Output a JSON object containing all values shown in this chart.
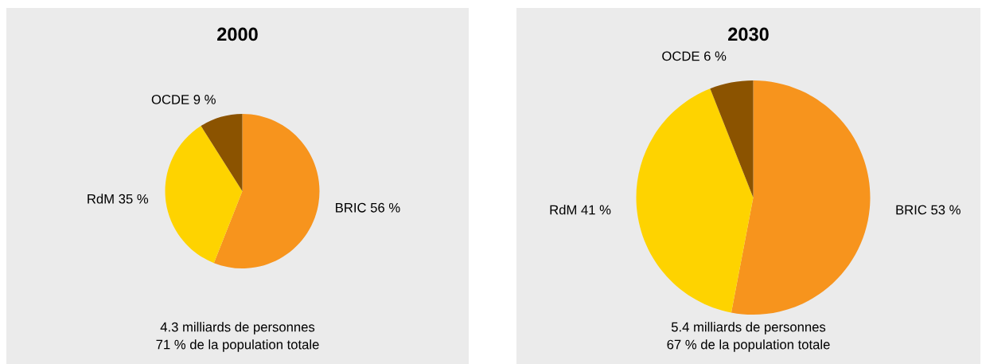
{
  "chart_data": [
    {
      "type": "pie",
      "title": "2000",
      "categories": [
        "BRIC",
        "RdM",
        "OCDE"
      ],
      "values": [
        56,
        35,
        9
      ],
      "value_labels": [
        "56 %",
        "35 %",
        "9 %"
      ],
      "colors": [
        "#f7941d",
        "#fed300",
        "#8b5300"
      ],
      "annotations": [
        "4.3 milliards de personnes",
        "71 % de la population totale"
      ]
    },
    {
      "type": "pie",
      "title": "2030",
      "categories": [
        "BRIC",
        "RdM",
        "OCDE"
      ],
      "values": [
        53,
        41,
        6
      ],
      "value_labels": [
        "53 %",
        "41 %",
        "6 %"
      ],
      "colors": [
        "#f7941d",
        "#fed300",
        "#8b5300"
      ],
      "annotations": [
        "5.4 milliards de personnes",
        "67 % de la population totale"
      ]
    }
  ]
}
